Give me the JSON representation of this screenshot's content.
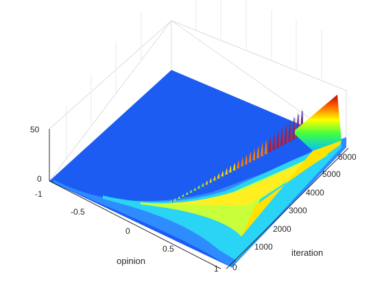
{
  "chart_data": {
    "type": "surface",
    "title": "",
    "xlabel": "opinion",
    "ylabel": "iteration",
    "zlabel": "",
    "xlim": [
      -1,
      1
    ],
    "ylim": [
      0,
      6000
    ],
    "zlim": [
      0,
      50
    ],
    "x_ticks": [
      "-1",
      "-0.5",
      "0",
      "0.5",
      "1"
    ],
    "y_ticks": [
      "0",
      "1000",
      "2000",
      "3000",
      "4000",
      "5000",
      "6000"
    ],
    "z_ticks": [
      "0",
      "50"
    ],
    "colormap": "jet",
    "grid": true,
    "description_series": [
      {
        "name": "",
        "iteration": [
          0,
          500,
          1000,
          1500,
          2000,
          2500,
          3000,
          3500,
          4000,
          4500,
          5000,
          5500,
          6000
        ],
        "peak_opinion": [
          -0.9,
          -0.75,
          -0.55,
          -0.3,
          -0.05,
          0.15,
          0.35,
          0.55,
          0.7,
          0.85,
          0.93,
          0.97,
          0.98
        ],
        "peak_density": [
          3,
          4,
          5,
          6,
          7,
          8,
          9,
          11,
          13,
          18,
          25,
          35,
          45
        ]
      }
    ]
  }
}
